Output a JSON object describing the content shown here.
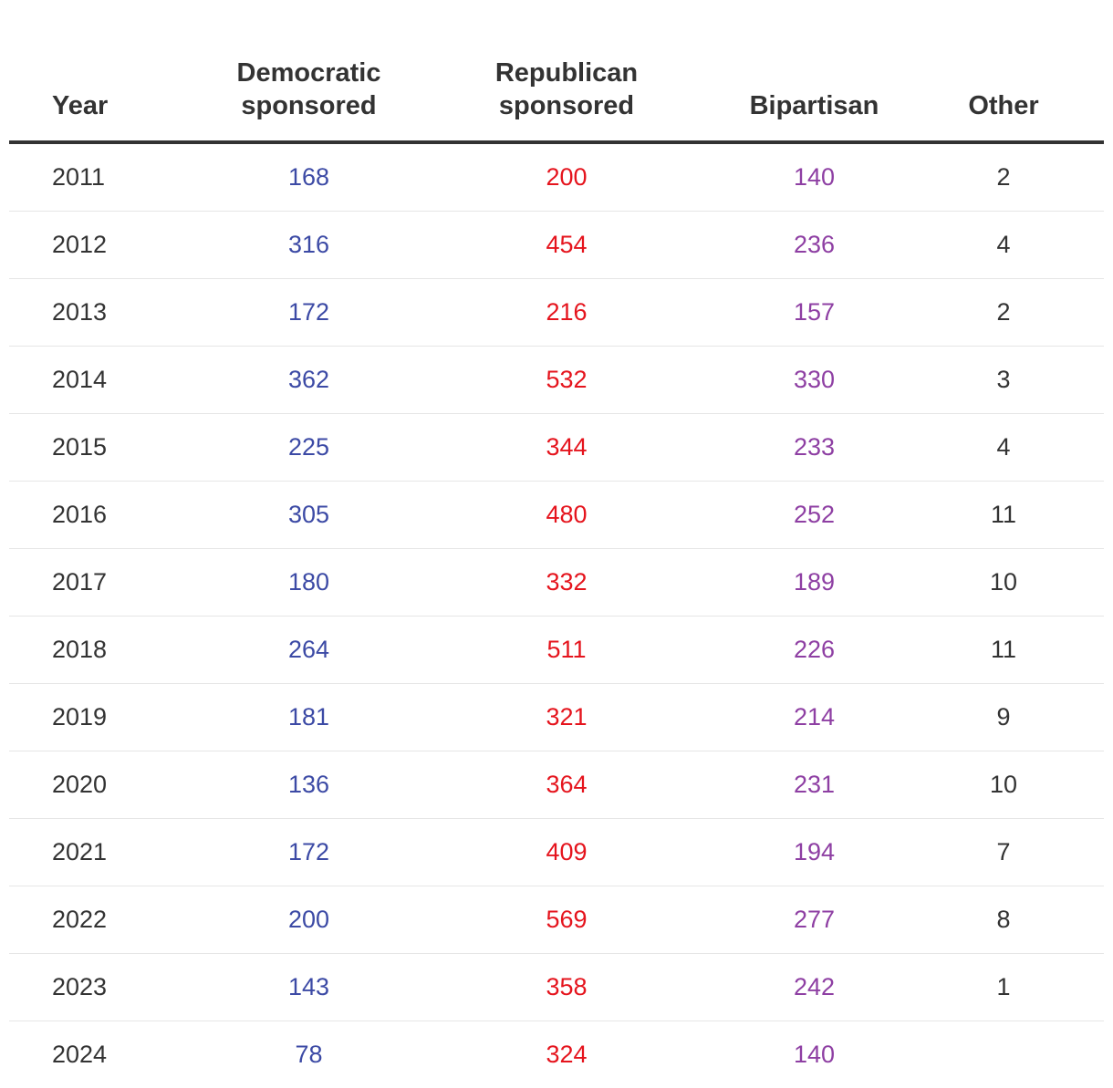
{
  "chart_data": {
    "type": "table",
    "columns": [
      "Year",
      "Democratic sponsored",
      "Republican sponsored",
      "Bipartisan",
      "Other"
    ],
    "header_lines": [
      [
        "Year"
      ],
      [
        "Democratic",
        "sponsored"
      ],
      [
        "Republican",
        "sponsored"
      ],
      [
        "Bipartisan"
      ],
      [
        "Other"
      ]
    ],
    "rows": [
      {
        "year": "2011",
        "dem": "168",
        "rep": "200",
        "bip": "140",
        "other": "2"
      },
      {
        "year": "2012",
        "dem": "316",
        "rep": "454",
        "bip": "236",
        "other": "4"
      },
      {
        "year": "2013",
        "dem": "172",
        "rep": "216",
        "bip": "157",
        "other": "2"
      },
      {
        "year": "2014",
        "dem": "362",
        "rep": "532",
        "bip": "330",
        "other": "3"
      },
      {
        "year": "2015",
        "dem": "225",
        "rep": "344",
        "bip": "233",
        "other": "4"
      },
      {
        "year": "2016",
        "dem": "305",
        "rep": "480",
        "bip": "252",
        "other": "11"
      },
      {
        "year": "2017",
        "dem": "180",
        "rep": "332",
        "bip": "189",
        "other": "10"
      },
      {
        "year": "2018",
        "dem": "264",
        "rep": "511",
        "bip": "226",
        "other": "11"
      },
      {
        "year": "2019",
        "dem": "181",
        "rep": "321",
        "bip": "214",
        "other": "9"
      },
      {
        "year": "2020",
        "dem": "136",
        "rep": "364",
        "bip": "231",
        "other": "10"
      },
      {
        "year": "2021",
        "dem": "172",
        "rep": "409",
        "bip": "194",
        "other": "7"
      },
      {
        "year": "2022",
        "dem": "200",
        "rep": "569",
        "bip": "277",
        "other": "8"
      },
      {
        "year": "2023",
        "dem": "143",
        "rep": "358",
        "bip": "242",
        "other": "1"
      },
      {
        "year": "2024",
        "dem": "78",
        "rep": "324",
        "bip": "140",
        "other": ""
      }
    ],
    "colors": {
      "democratic": "#3c4aa5",
      "republican": "#e5141d",
      "bipartisan": "#8e3fa3",
      "neutral": "#333333"
    }
  }
}
